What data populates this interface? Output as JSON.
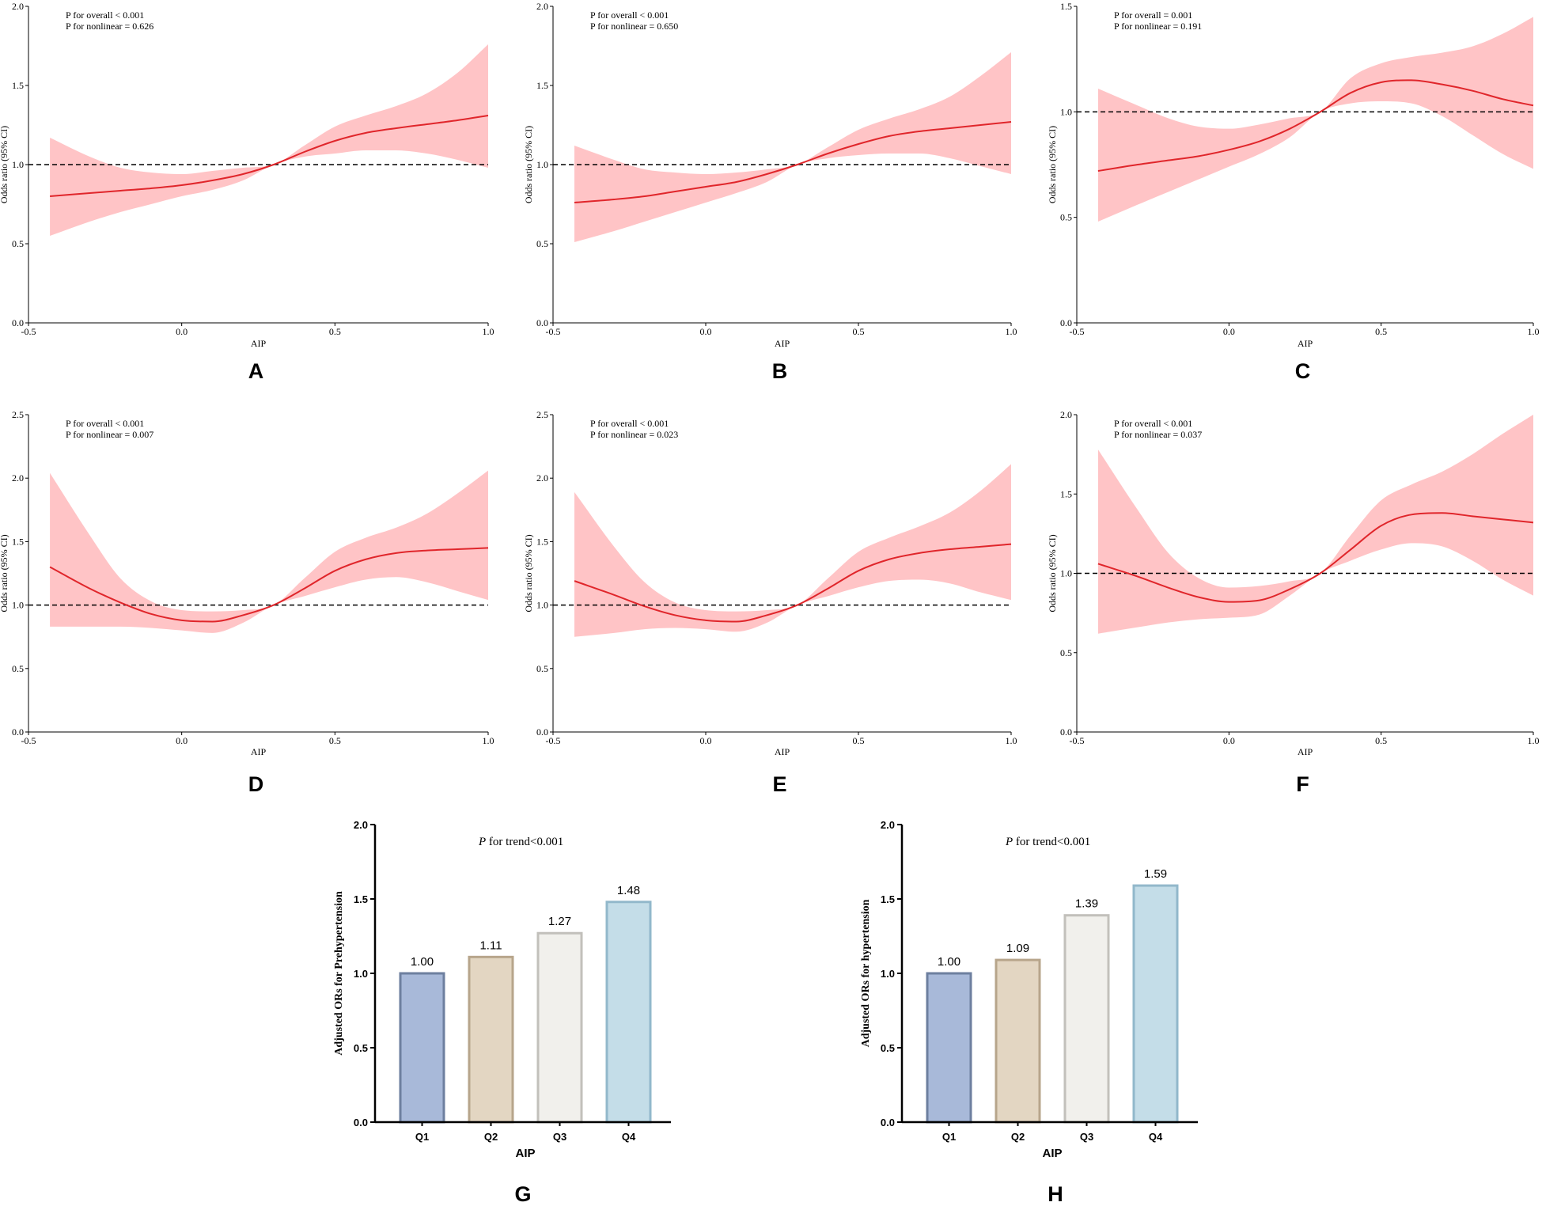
{
  "colors": {
    "ci_band": "#ffc4c6",
    "curve": "#e0262b",
    "reference_line": "#000000"
  },
  "chart_data": [
    {
      "id": "A",
      "type": "line",
      "panel_label": "A",
      "xlabel": "AIP",
      "ylabel": "Odds ratio (95% CI)",
      "xlim": [
        -0.5,
        1.0
      ],
      "ylim": [
        0.0,
        2.0
      ],
      "x_ticks": [
        "-0.5",
        "0.0",
        "0.5",
        "1.0"
      ],
      "y_ticks": [
        "0.0",
        "0.5",
        "1.0",
        "1.5",
        "2.0"
      ],
      "reference_y": 1.0,
      "annotations": [
        "P for overall < 0.001",
        "P for nonlinear = 0.626"
      ],
      "series": [
        {
          "name": "Odds ratio",
          "x": [
            -0.43,
            -0.3,
            -0.2,
            -0.1,
            0.0,
            0.1,
            0.2,
            0.3,
            0.4,
            0.5,
            0.6,
            0.7,
            0.8,
            0.9,
            1.0
          ],
          "y": [
            0.8,
            0.82,
            0.835,
            0.85,
            0.87,
            0.9,
            0.94,
            1.0,
            1.08,
            1.15,
            1.2,
            1.23,
            1.255,
            1.28,
            1.31
          ]
        },
        {
          "name": "95% CI upper",
          "x": [
            -0.43,
            -0.3,
            -0.2,
            -0.1,
            0.0,
            0.1,
            0.2,
            0.3,
            0.4,
            0.5,
            0.6,
            0.7,
            0.8,
            0.9,
            1.0
          ],
          "y": [
            1.17,
            1.05,
            0.98,
            0.95,
            0.94,
            0.96,
            0.98,
            1.0,
            1.12,
            1.24,
            1.31,
            1.37,
            1.45,
            1.58,
            1.76
          ]
        },
        {
          "name": "95% CI lower",
          "x": [
            -0.43,
            -0.3,
            -0.2,
            -0.1,
            0.0,
            0.1,
            0.2,
            0.3,
            0.4,
            0.5,
            0.6,
            0.7,
            0.8,
            0.9,
            1.0
          ],
          "y": [
            0.55,
            0.64,
            0.7,
            0.75,
            0.8,
            0.84,
            0.9,
            1.0,
            1.05,
            1.07,
            1.09,
            1.09,
            1.07,
            1.03,
            0.98
          ]
        }
      ]
    },
    {
      "id": "B",
      "type": "line",
      "panel_label": "B",
      "xlabel": "AIP",
      "ylabel": "Odds ratio (95% CI)",
      "xlim": [
        -0.5,
        1.0
      ],
      "ylim": [
        0.0,
        2.0
      ],
      "x_ticks": [
        "-0.5",
        "0.0",
        "0.5",
        "1.0"
      ],
      "y_ticks": [
        "0.0",
        "0.5",
        "1.0",
        "1.5",
        "2.0"
      ],
      "reference_y": 1.0,
      "annotations": [
        "P for overall < 0.001",
        "P for nonlinear = 0.650"
      ],
      "series": [
        {
          "name": "Odds ratio",
          "x": [
            -0.43,
            -0.3,
            -0.2,
            -0.1,
            0.0,
            0.1,
            0.2,
            0.3,
            0.4,
            0.5,
            0.6,
            0.7,
            0.8,
            0.9,
            1.0
          ],
          "y": [
            0.76,
            0.78,
            0.8,
            0.83,
            0.86,
            0.89,
            0.94,
            1.0,
            1.07,
            1.13,
            1.18,
            1.21,
            1.23,
            1.25,
            1.27
          ]
        },
        {
          "name": "95% CI upper",
          "x": [
            -0.43,
            -0.3,
            -0.2,
            -0.1,
            0.0,
            0.1,
            0.2,
            0.3,
            0.4,
            0.5,
            0.6,
            0.7,
            0.8,
            0.9,
            1.0
          ],
          "y": [
            1.12,
            1.03,
            0.97,
            0.95,
            0.94,
            0.95,
            0.97,
            1.0,
            1.11,
            1.22,
            1.29,
            1.35,
            1.43,
            1.56,
            1.71
          ]
        },
        {
          "name": "95% CI lower",
          "x": [
            -0.43,
            -0.3,
            -0.2,
            -0.1,
            0.0,
            0.1,
            0.2,
            0.3,
            0.4,
            0.5,
            0.6,
            0.7,
            0.8,
            0.9,
            1.0
          ],
          "y": [
            0.51,
            0.58,
            0.64,
            0.7,
            0.76,
            0.82,
            0.89,
            1.0,
            1.04,
            1.06,
            1.07,
            1.07,
            1.04,
            0.99,
            0.94
          ]
        }
      ]
    },
    {
      "id": "C",
      "type": "line",
      "panel_label": "C",
      "xlabel": "AIP",
      "ylabel": "Odds ratio (95% CI)",
      "xlim": [
        -0.5,
        1.0
      ],
      "ylim": [
        0.0,
        1.5
      ],
      "x_ticks": [
        "-0.5",
        "0.0",
        "0.5",
        "1.0"
      ],
      "y_ticks": [
        "0.0",
        "0.5",
        "1.0",
        "1.5"
      ],
      "reference_y": 1.0,
      "annotations": [
        "P for overall = 0.001",
        "P for nonlinear = 0.191"
      ],
      "series": [
        {
          "name": "Odds ratio",
          "x": [
            -0.43,
            -0.3,
            -0.2,
            -0.1,
            0.0,
            0.1,
            0.2,
            0.3,
            0.4,
            0.5,
            0.6,
            0.7,
            0.8,
            0.9,
            1.0
          ],
          "y": [
            0.72,
            0.75,
            0.77,
            0.79,
            0.82,
            0.86,
            0.92,
            1.0,
            1.09,
            1.14,
            1.15,
            1.13,
            1.1,
            1.06,
            1.03
          ]
        },
        {
          "name": "95% CI upper",
          "x": [
            -0.43,
            -0.3,
            -0.2,
            -0.1,
            0.0,
            0.1,
            0.2,
            0.3,
            0.4,
            0.5,
            0.6,
            0.7,
            0.8,
            0.9,
            1.0
          ],
          "y": [
            1.11,
            1.03,
            0.97,
            0.93,
            0.92,
            0.94,
            0.97,
            1.0,
            1.16,
            1.23,
            1.26,
            1.28,
            1.31,
            1.37,
            1.45
          ]
        },
        {
          "name": "95% CI lower",
          "x": [
            -0.43,
            -0.3,
            -0.2,
            -0.1,
            0.0,
            0.1,
            0.2,
            0.3,
            0.4,
            0.5,
            0.6,
            0.7,
            0.8,
            0.9,
            1.0
          ],
          "y": [
            0.48,
            0.56,
            0.62,
            0.68,
            0.74,
            0.8,
            0.88,
            1.0,
            1.04,
            1.05,
            1.04,
            0.98,
            0.89,
            0.8,
            0.73
          ]
        }
      ]
    },
    {
      "id": "D",
      "type": "line",
      "panel_label": "D",
      "xlabel": "AIP",
      "ylabel": "Odds ratio (95% CI)",
      "xlim": [
        -0.5,
        1.0
      ],
      "ylim": [
        0.0,
        2.5
      ],
      "x_ticks": [
        "-0.5",
        "0.0",
        "0.5",
        "1.0"
      ],
      "y_ticks": [
        "0.0",
        "0.5",
        "1.0",
        "1.5",
        "2.0",
        "2.5"
      ],
      "reference_y": 1.0,
      "annotations": [
        "P for overall < 0.001",
        "P for nonlinear = 0.007"
      ],
      "series": [
        {
          "name": "Odds ratio",
          "x": [
            -0.43,
            -0.3,
            -0.2,
            -0.1,
            0.0,
            0.1,
            0.2,
            0.3,
            0.4,
            0.5,
            0.6,
            0.7,
            0.8,
            0.9,
            1.0
          ],
          "y": [
            1.3,
            1.13,
            1.02,
            0.93,
            0.88,
            0.87,
            0.92,
            1.0,
            1.13,
            1.27,
            1.36,
            1.41,
            1.43,
            1.44,
            1.45
          ]
        },
        {
          "name": "95% CI upper",
          "x": [
            -0.43,
            -0.3,
            -0.2,
            -0.1,
            0.0,
            0.1,
            0.2,
            0.3,
            0.4,
            0.5,
            0.6,
            0.7,
            0.8,
            0.9,
            1.0
          ],
          "y": [
            2.04,
            1.55,
            1.21,
            1.03,
            0.96,
            0.95,
            0.96,
            1.0,
            1.21,
            1.42,
            1.53,
            1.61,
            1.72,
            1.88,
            2.06
          ]
        },
        {
          "name": "95% CI lower",
          "x": [
            -0.43,
            -0.3,
            -0.2,
            -0.1,
            0.0,
            0.1,
            0.2,
            0.3,
            0.4,
            0.5,
            0.6,
            0.7,
            0.8,
            0.9,
            1.0
          ],
          "y": [
            0.83,
            0.83,
            0.83,
            0.82,
            0.8,
            0.78,
            0.86,
            1.0,
            1.07,
            1.14,
            1.2,
            1.22,
            1.18,
            1.11,
            1.04
          ]
        }
      ]
    },
    {
      "id": "E",
      "type": "line",
      "panel_label": "E",
      "xlabel": "AIP",
      "ylabel": "Odds ratio (95% CI)",
      "xlim": [
        -0.5,
        1.0
      ],
      "ylim": [
        0.0,
        2.5
      ],
      "x_ticks": [
        "-0.5",
        "0.0",
        "0.5",
        "1.0"
      ],
      "y_ticks": [
        "0.0",
        "0.5",
        "1.0",
        "1.5",
        "2.0",
        "2.5"
      ],
      "reference_y": 1.0,
      "annotations": [
        "P for overall < 0.001",
        "P for nonlinear = 0.023"
      ],
      "series": [
        {
          "name": "Odds ratio",
          "x": [
            -0.43,
            -0.3,
            -0.2,
            -0.1,
            0.0,
            0.1,
            0.2,
            0.3,
            0.4,
            0.5,
            0.6,
            0.7,
            0.8,
            0.9,
            1.0
          ],
          "y": [
            1.19,
            1.08,
            0.99,
            0.92,
            0.88,
            0.87,
            0.92,
            1.0,
            1.13,
            1.27,
            1.36,
            1.41,
            1.44,
            1.46,
            1.48
          ]
        },
        {
          "name": "95% CI upper",
          "x": [
            -0.43,
            -0.3,
            -0.2,
            -0.1,
            0.0,
            0.1,
            0.2,
            0.3,
            0.4,
            0.5,
            0.6,
            0.7,
            0.8,
            0.9,
            1.0
          ],
          "y": [
            1.89,
            1.46,
            1.18,
            1.02,
            0.96,
            0.95,
            0.96,
            1.0,
            1.21,
            1.42,
            1.53,
            1.62,
            1.73,
            1.9,
            2.11
          ]
        },
        {
          "name": "95% CI lower",
          "x": [
            -0.43,
            -0.3,
            -0.2,
            -0.1,
            0.0,
            0.1,
            0.2,
            0.3,
            0.4,
            0.5,
            0.6,
            0.7,
            0.8,
            0.9,
            1.0
          ],
          "y": [
            0.75,
            0.78,
            0.81,
            0.82,
            0.81,
            0.79,
            0.86,
            1.0,
            1.07,
            1.14,
            1.19,
            1.2,
            1.17,
            1.1,
            1.04
          ]
        }
      ]
    },
    {
      "id": "F",
      "type": "line",
      "panel_label": "F",
      "xlabel": "AIP",
      "ylabel": "Odds ratio (95% CI)",
      "xlim": [
        -0.5,
        1.0
      ],
      "ylim": [
        0.0,
        2.0
      ],
      "x_ticks": [
        "-0.5",
        "0.0",
        "0.5",
        "1.0"
      ],
      "y_ticks": [
        "0.0",
        "0.5",
        "1.0",
        "1.5",
        "2.0"
      ],
      "reference_y": 1.0,
      "annotations": [
        "P for overall < 0.001",
        "P for nonlinear = 0.037"
      ],
      "series": [
        {
          "name": "Odds ratio",
          "x": [
            -0.43,
            -0.3,
            -0.2,
            -0.1,
            0.0,
            0.1,
            0.2,
            0.3,
            0.4,
            0.5,
            0.6,
            0.7,
            0.8,
            0.9,
            1.0
          ],
          "y": [
            1.06,
            0.98,
            0.91,
            0.85,
            0.82,
            0.83,
            0.9,
            1.0,
            1.15,
            1.3,
            1.37,
            1.38,
            1.36,
            1.34,
            1.32
          ]
        },
        {
          "name": "95% CI upper",
          "x": [
            -0.43,
            -0.3,
            -0.2,
            -0.1,
            0.0,
            0.1,
            0.2,
            0.3,
            0.4,
            0.5,
            0.6,
            0.7,
            0.8,
            0.9,
            1.0
          ],
          "y": [
            1.78,
            1.4,
            1.13,
            0.97,
            0.91,
            0.92,
            0.95,
            1.0,
            1.24,
            1.46,
            1.56,
            1.64,
            1.75,
            1.88,
            2.0
          ]
        },
        {
          "name": "95% CI lower",
          "x": [
            -0.43,
            -0.3,
            -0.2,
            -0.1,
            0.0,
            0.1,
            0.2,
            0.3,
            0.4,
            0.5,
            0.6,
            0.7,
            0.8,
            0.9,
            1.0
          ],
          "y": [
            0.62,
            0.66,
            0.69,
            0.71,
            0.72,
            0.74,
            0.86,
            1.0,
            1.08,
            1.15,
            1.19,
            1.17,
            1.08,
            0.96,
            0.86
          ]
        }
      ]
    },
    {
      "id": "G",
      "type": "bar",
      "panel_label": "G",
      "xlabel": "AIP",
      "ylabel": "Adjusted ORs for Prehypertension",
      "ylim": [
        0.0,
        2.0
      ],
      "y_ticks": [
        "0.0",
        "0.5",
        "1.0",
        "1.5",
        "2.0"
      ],
      "trend_italic": "P",
      "trend_text": " for trend<0.001",
      "categories": [
        "Q1",
        "Q2",
        "Q3",
        "Q4"
      ],
      "values": [
        1.0,
        1.11,
        1.27,
        1.48
      ],
      "value_labels": [
        "1.00",
        "1.11",
        "1.27",
        "1.48"
      ],
      "bar_fills": [
        "#a8b9d9",
        "#e3d6c2",
        "#f1f0ec",
        "#c4dde8"
      ],
      "bar_strokes": [
        "#6d7f9f",
        "#b7a58b",
        "#c2c0bb",
        "#92b8cb"
      ]
    },
    {
      "id": "H",
      "type": "bar",
      "panel_label": "H",
      "xlabel": "AIP",
      "ylabel": "Adjusted ORs for hypertension",
      "ylim": [
        0.0,
        2.0
      ],
      "y_ticks": [
        "0.0",
        "0.5",
        "1.0",
        "1.5",
        "2.0"
      ],
      "trend_italic": "P",
      "trend_text": " for trend<0.001",
      "categories": [
        "Q1",
        "Q2",
        "Q3",
        "Q4"
      ],
      "values": [
        1.0,
        1.09,
        1.39,
        1.59
      ],
      "value_labels": [
        "1.00",
        "1.09",
        "1.39",
        "1.59"
      ],
      "bar_fills": [
        "#a8b9d9",
        "#e3d6c2",
        "#f1f0ec",
        "#c4dde8"
      ],
      "bar_strokes": [
        "#6d7f9f",
        "#b7a58b",
        "#c2c0bb",
        "#92b8cb"
      ]
    }
  ]
}
